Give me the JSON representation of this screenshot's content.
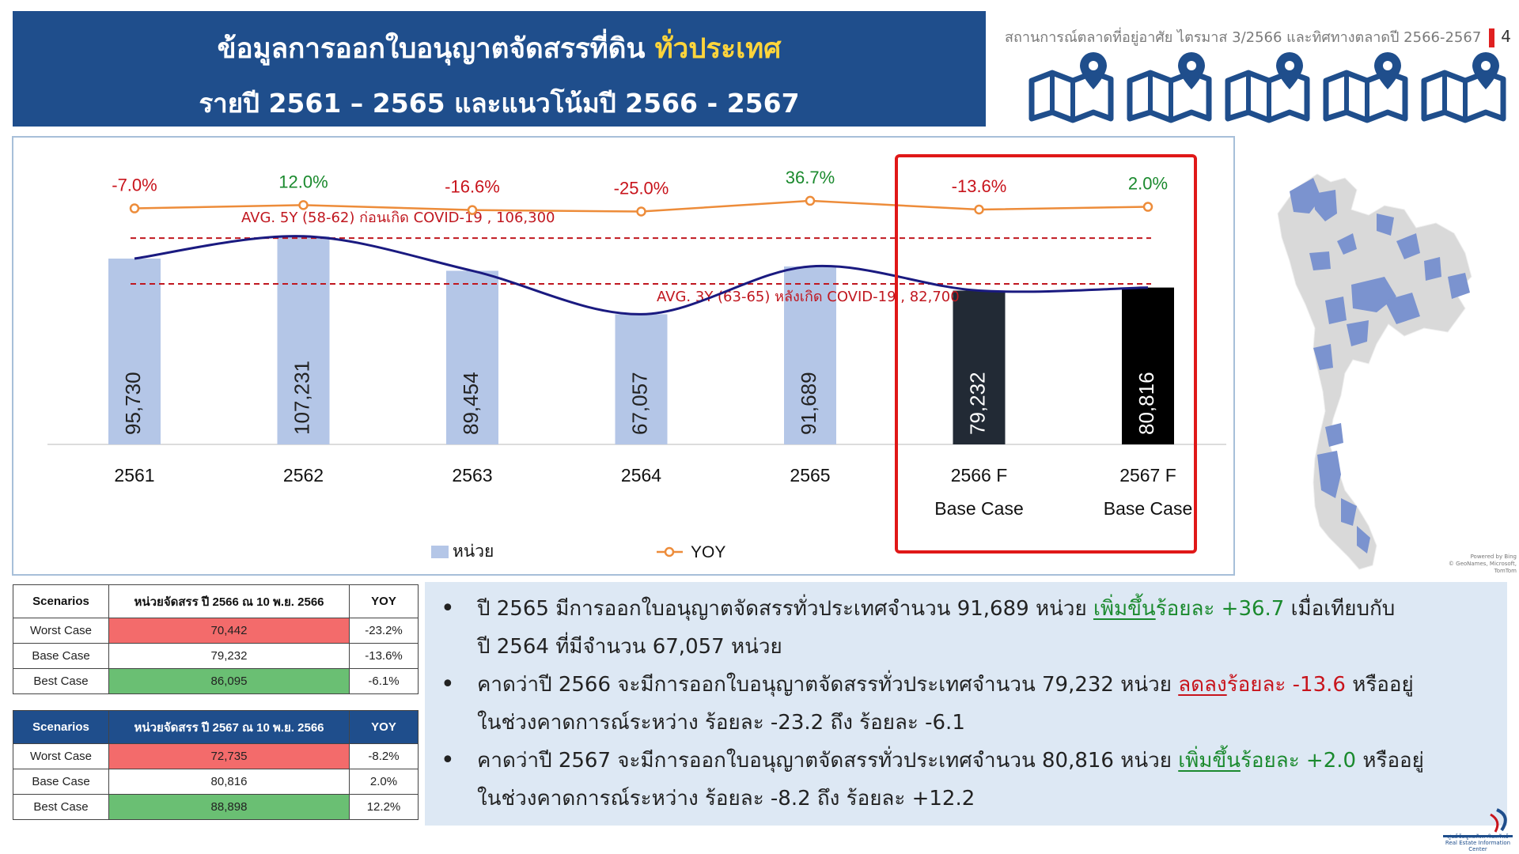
{
  "header": {
    "title_part1": "ข้อมูลการออกใบอนุญาตจัดสรรที่ดิน ",
    "title_highlight": "ทั่วประเทศ",
    "title_line2": "รายปี 2561 – 2565 และแนวโน้มปี 2566 - 2567",
    "subtitle": "สถานการณ์ตลาดที่อยู่อาศัย ไตรมาส 3/2566 และทิศทางตลาดปี 2566-2567",
    "page_number": "4"
  },
  "icons": [
    "map-pin-icon",
    "map-pin-icon",
    "map-pin-icon",
    "map-pin-icon",
    "map-pin-icon"
  ],
  "colors": {
    "header_bg": "#1f4e8c",
    "highlight": "#ffd53b",
    "bar_actual": "#b4c6e7",
    "bar_forecast_1": "#222a35",
    "bar_forecast_2": "#000000",
    "yoy_line": "#ed8c3a",
    "trend_line": "#1a1a80",
    "avg_line": "#c0171f",
    "yoy_positive": "#1b8a2e",
    "yoy_negative": "#c8141c",
    "worst_case": "#f36b6b",
    "best_case": "#6abf73",
    "bullet_bg": "#dde8f4"
  },
  "chart_data": {
    "type": "bar",
    "categories": [
      "2561",
      "2562",
      "2563",
      "2564",
      "2565",
      "2566 F",
      "2567 F"
    ],
    "category_sublabels": [
      "",
      "",
      "",
      "",
      "",
      "Base Case",
      "Base Case"
    ],
    "values": [
      95730,
      107231,
      89454,
      67057,
      91689,
      79232,
      80816
    ],
    "value_labels": [
      "95,730",
      "107,231",
      "89,454",
      "67,057",
      "91,689",
      "79,232",
      "80,816"
    ],
    "yoy": [
      -7.0,
      12.0,
      -16.6,
      -25.0,
      36.7,
      -13.6,
      2.0
    ],
    "yoy_labels": [
      "-7.0%",
      "12.0%",
      "-16.6%",
      "-25.0%",
      "36.7%",
      "-13.6%",
      "2.0%"
    ],
    "reference_lines": [
      {
        "label": "AVG. 5Y (58-62) ก่อนเกิด COVID-19 ,  106,300",
        "value": 106300
      },
      {
        "label": "AVG. 3Y (63-65) หลังเกิด COVID-19 ,  82,700",
        "value": 82700
      }
    ],
    "legend": [
      {
        "name": "หน่วย",
        "kind": "bar"
      },
      {
        "name": "YOY",
        "kind": "line"
      }
    ],
    "legend_position": "bottom",
    "grid": false
  },
  "table_2566": {
    "headers": [
      "Scenarios",
      "หน่วยจัดสรร ปี 2566 ณ 10 พ.ย. 2566",
      "YOY"
    ],
    "rows": [
      {
        "scenario": "Worst Case",
        "units": "70,442",
        "yoy": "-23.2%"
      },
      {
        "scenario": "Base Case",
        "units": "79,232",
        "yoy": "-13.6%"
      },
      {
        "scenario": "Best Case",
        "units": "86,095",
        "yoy": "-6.1%"
      }
    ]
  },
  "table_2567": {
    "headers": [
      "Scenarios",
      "หน่วยจัดสรร ปี 2567 ณ 10 พ.ย. 2566",
      "YOY"
    ],
    "rows": [
      {
        "scenario": "Worst Case",
        "units": "72,735",
        "yoy": "-8.2%"
      },
      {
        "scenario": "Base Case",
        "units": "80,816",
        "yoy": "2.0%"
      },
      {
        "scenario": "Best Case",
        "units": "88,898",
        "yoy": "12.2%"
      }
    ]
  },
  "bullets": {
    "b1": {
      "pre": "ปี 2565 มีการออกใบอนุญาตจัดสรรทั่วประเทศจำนวน  91,689 หน่วย ",
      "change_word": "เพิ่มขึ้น",
      "change_value": "ร้อยละ +36.7",
      "post_line1": " เมื่อเทียบกับ",
      "line2": "ปี 2564 ที่มีจำนวน 67,057 หน่วย"
    },
    "b2": {
      "pre": "คาดว่าปี 2566 จะมีการออกใบอนุญาตจัดสรรทั่วประเทศจำนวน 79,232 หน่วย ",
      "change_word": "ลดลง",
      "change_value": "ร้อยละ -13.6",
      "post_line1": " หรืออยู่",
      "line2": "ในช่วงคาดการณ์ระหว่าง ร้อยละ -23.2 ถึง ร้อยละ -6.1"
    },
    "b3": {
      "pre": "คาดว่าปี 2567 จะมีการออกใบอนุญาตจัดสรรทั่วประเทศจำนวน  80,816 หน่วย ",
      "change_word": "เพิ่มขึ้น",
      "change_value": "ร้อยละ +2.0",
      "post_line1": " หรืออยู่",
      "line2": "ในช่วงคาดการณ์ระหว่าง ร้อยละ -8.2 ถึง ร้อยละ +12.2"
    }
  },
  "map_credit": [
    "Powered by Bing",
    "© GeoNames, Microsoft, TomTom"
  ],
  "logo": {
    "name_th": "ศูนย์ข้อมูลอสังหาริมทรัพย์",
    "name_en": "Real Estate Information Center"
  }
}
